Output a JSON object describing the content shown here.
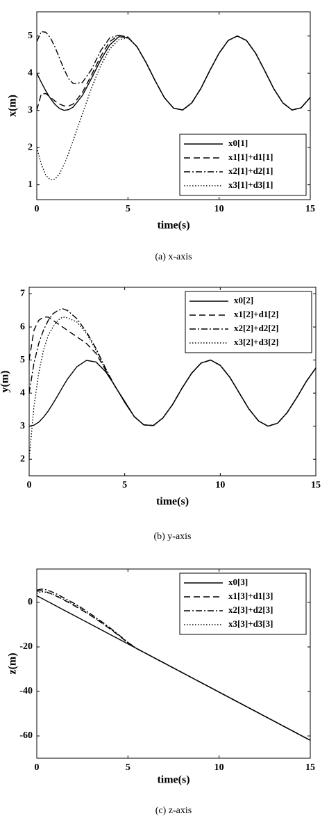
{
  "chart_data": [
    {
      "type": "line",
      "caption": "(a)  x-axis",
      "xlabel": "time(s)",
      "ylabel": "x(m)",
      "x": [
        0,
        0.25,
        0.5,
        0.75,
        1,
        1.25,
        1.5,
        1.75,
        2,
        2.5,
        3,
        3.5,
        4,
        4.5,
        5,
        5.5,
        6,
        6.5,
        7,
        7.5,
        8,
        8.5,
        9,
        9.5,
        10,
        10.5,
        11,
        11.5,
        12,
        12.5,
        13,
        13.5,
        14,
        14.5,
        15
      ],
      "xlim": [
        0,
        15
      ],
      "xticks": [
        0,
        5,
        10,
        15
      ],
      "ylim": [
        0.6,
        5.65
      ],
      "yticks": [
        1,
        2,
        3,
        4,
        5
      ],
      "legend": "lower right",
      "series": [
        {
          "name": "x0[1]",
          "color": "#000000",
          "linestyle": "solid",
          "values": [
            4,
            3.75,
            3.52,
            3.32,
            3.16,
            3.05,
            3.0,
            3.02,
            3.09,
            3.4,
            3.86,
            4.35,
            4.76,
            4.98,
            4.96,
            4.71,
            4.28,
            3.79,
            3.34,
            3.06,
            3.01,
            3.2,
            3.59,
            4.08,
            4.54,
            4.88,
            5.0,
            4.88,
            4.54,
            4.07,
            3.58,
            3.2,
            3.01,
            3.07,
            3.35
          ]
        },
        {
          "name": "x1[1]+d1[1]",
          "color": "#000000",
          "linestyle": "dashed",
          "values": [
            3.0,
            3.45,
            3.45,
            3.35,
            3.25,
            3.17,
            3.12,
            3.12,
            3.17,
            3.48,
            3.95,
            4.45,
            4.85,
            5.02,
            4.97,
            4.71,
            4.28,
            3.79,
            3.34,
            3.06,
            3.01,
            3.2,
            3.59,
            4.08,
            4.54,
            4.88,
            5.0,
            4.88,
            4.54,
            4.07,
            3.58,
            3.2,
            3.01,
            3.07,
            3.35
          ]
        },
        {
          "name": "x2[1]+d2[1]",
          "color": "#000000",
          "linestyle": "dashdot",
          "values": [
            4.85,
            5.12,
            5.1,
            4.95,
            4.7,
            4.4,
            4.1,
            3.85,
            3.72,
            3.75,
            4.1,
            4.6,
            4.95,
            5.02,
            4.97,
            4.71,
            4.28,
            3.79,
            3.34,
            3.06,
            3.01,
            3.2,
            3.59,
            4.08,
            4.54,
            4.88,
            5.0,
            4.88,
            4.54,
            4.07,
            3.58,
            3.2,
            3.01,
            3.07,
            3.35
          ]
        },
        {
          "name": "x3[1]+d3[1]",
          "color": "#000000",
          "linestyle": "dotted",
          "values": [
            2.0,
            1.55,
            1.25,
            1.13,
            1.15,
            1.3,
            1.55,
            1.85,
            2.2,
            2.9,
            3.6,
            4.2,
            4.65,
            4.9,
            4.95,
            4.71,
            4.28,
            3.79,
            3.34,
            3.06,
            3.01,
            3.2,
            3.59,
            4.08,
            4.54,
            4.88,
            5.0,
            4.88,
            4.54,
            4.07,
            3.58,
            3.2,
            3.01,
            3.07,
            3.35
          ]
        }
      ]
    },
    {
      "type": "line",
      "caption": "(b)  y-axis",
      "xlabel": "time(s)",
      "ylabel": "y(m)",
      "x": [
        0,
        0.25,
        0.5,
        0.75,
        1,
        1.25,
        1.5,
        1.75,
        2,
        2.5,
        3,
        3.5,
        4,
        4.5,
        5,
        5.5,
        6,
        6.5,
        7,
        7.5,
        8,
        8.5,
        9,
        9.5,
        10,
        10.5,
        11,
        11.5,
        12,
        12.5,
        13,
        13.5,
        14,
        14.5,
        15
      ],
      "xlim": [
        0,
        15
      ],
      "xticks": [
        0,
        5,
        10,
        15
      ],
      "ylim": [
        1.5,
        7.2
      ],
      "yticks": [
        2,
        3,
        4,
        5,
        6,
        7
      ],
      "legend": "upper right",
      "series": [
        {
          "name": "x0[2]",
          "color": "#000000",
          "linestyle": "solid",
          "values": [
            3.0,
            3.03,
            3.12,
            3.27,
            3.46,
            3.69,
            3.93,
            4.18,
            4.42,
            4.8,
            4.99,
            4.94,
            4.65,
            4.21,
            3.72,
            3.29,
            3.04,
            3.02,
            3.25,
            3.65,
            4.15,
            4.6,
            4.91,
            5.0,
            4.84,
            4.48,
            4.0,
            3.52,
            3.16,
            3.0,
            3.09,
            3.41,
            3.86,
            4.35,
            4.76
          ]
        },
        {
          "name": "x1[2]+d1[2]",
          "color": "#000000",
          "linestyle": "dashed",
          "values": [
            5.0,
            5.9,
            6.2,
            6.3,
            6.3,
            6.2,
            6.1,
            6.0,
            5.9,
            5.7,
            5.5,
            5.2,
            4.7,
            4.2,
            3.75,
            3.29,
            3.04,
            3.02,
            3.25,
            3.65,
            4.15,
            4.6,
            4.91,
            5.0,
            4.84,
            4.48,
            4.0,
            3.52,
            3.16,
            3.0,
            3.09,
            3.41,
            3.86,
            4.35,
            4.76
          ]
        },
        {
          "name": "x2[2]+d2[2]",
          "color": "#000000",
          "linestyle": "dashdot",
          "values": [
            4.0,
            4.9,
            5.5,
            5.9,
            6.2,
            6.4,
            6.5,
            6.55,
            6.5,
            6.25,
            5.85,
            5.35,
            4.75,
            4.2,
            3.75,
            3.29,
            3.04,
            3.02,
            3.25,
            3.65,
            4.15,
            4.6,
            4.91,
            5.0,
            4.84,
            4.48,
            4.0,
            3.52,
            3.16,
            3.0,
            3.09,
            3.41,
            3.86,
            4.35,
            4.76
          ]
        },
        {
          "name": "x3[2]+d3[2]",
          "color": "#000000",
          "linestyle": "dotted",
          "values": [
            2.0,
            3.6,
            4.6,
            5.3,
            5.75,
            6.0,
            6.2,
            6.3,
            6.28,
            6.15,
            5.8,
            5.3,
            4.7,
            4.2,
            3.75,
            3.29,
            3.04,
            3.02,
            3.25,
            3.65,
            4.15,
            4.6,
            4.91,
            5.0,
            4.84,
            4.48,
            4.0,
            3.52,
            3.16,
            3.0,
            3.09,
            3.41,
            3.86,
            4.35,
            4.76
          ]
        }
      ]
    },
    {
      "type": "line",
      "caption": "(c)  z-axis",
      "xlabel": "time(s)",
      "ylabel": "z(m)",
      "x": [
        0,
        0.25,
        0.5,
        0.75,
        1,
        1.25,
        1.5,
        1.75,
        2,
        2.5,
        3,
        3.5,
        4,
        4.5,
        5,
        5.5,
        6,
        6.5,
        7,
        7.5,
        8,
        8.5,
        9,
        9.5,
        10,
        10.5,
        11,
        11.5,
        12,
        12.5,
        13,
        13.5,
        14,
        14.5,
        15
      ],
      "xlim": [
        0,
        15
      ],
      "xticks": [
        0,
        5,
        10,
        15
      ],
      "ylim": [
        -70,
        15
      ],
      "yticks": [
        -60,
        -40,
        -20,
        0
      ],
      "legend": "upper right",
      "series": [
        {
          "name": "x0[3]",
          "color": "#000000",
          "linestyle": "solid",
          "values": [
            3,
            1.92,
            0.84,
            -0.25,
            -1.33,
            -2.41,
            -3.5,
            -4.58,
            -5.66,
            -7.83,
            -9.99,
            -12.16,
            -14.32,
            -16.49,
            -18.65,
            -20.82,
            -22.98,
            -25.15,
            -27.31,
            -29.48,
            -31.64,
            -33.81,
            -35.97,
            -38.14,
            -40.3,
            -42.47,
            -44.63,
            -46.8,
            -48.96,
            -51.13,
            -53.29,
            -55.46,
            -57.62,
            -59.79,
            -61.95
          ]
        },
        {
          "name": "x1[3]+d1[3]",
          "color": "#000000",
          "linestyle": "dashed",
          "values": [
            5.0,
            5.3,
            4.8,
            4.0,
            3.1,
            2.1,
            1.0,
            -0.1,
            -1.2,
            -3.6,
            -6.1,
            -8.9,
            -11.8,
            -14.9,
            -18.2,
            -20.82,
            -22.98,
            -25.15,
            -27.31,
            -29.48,
            -31.64,
            -33.81,
            -35.97,
            -38.14,
            -40.3,
            -42.47,
            -44.63,
            -46.8,
            -48.96,
            -51.13,
            -53.29,
            -55.46,
            -57.62,
            -59.79,
            -61.95
          ]
        },
        {
          "name": "x2[3]+d2[3]",
          "color": "#000000",
          "linestyle": "dashdot",
          "values": [
            5.5,
            6.0,
            5.7,
            5.0,
            4.1,
            3.1,
            2.0,
            0.9,
            -0.2,
            -2.7,
            -5.4,
            -8.3,
            -11.3,
            -14.6,
            -18.0,
            -20.82,
            -22.98,
            -25.15,
            -27.31,
            -29.48,
            -31.64,
            -33.81,
            -35.97,
            -38.14,
            -40.3,
            -42.47,
            -44.63,
            -46.8,
            -48.96,
            -51.13,
            -53.29,
            -55.46,
            -57.62,
            -59.79,
            -61.95
          ]
        },
        {
          "name": "x3[3]+d3[3]",
          "color": "#000000",
          "linestyle": "dotted",
          "values": [
            4.0,
            4.8,
            4.6,
            4.0,
            3.2,
            2.3,
            1.3,
            0.2,
            -0.9,
            -3.3,
            -5.9,
            -8.7,
            -11.7,
            -14.8,
            -18.1,
            -20.82,
            -22.98,
            -25.15,
            -27.31,
            -29.48,
            -31.64,
            -33.81,
            -35.97,
            -38.14,
            -40.3,
            -42.47,
            -44.63,
            -46.8,
            -48.96,
            -51.13,
            -53.29,
            -55.46,
            -57.62,
            -59.79,
            -61.95
          ]
        }
      ]
    }
  ]
}
